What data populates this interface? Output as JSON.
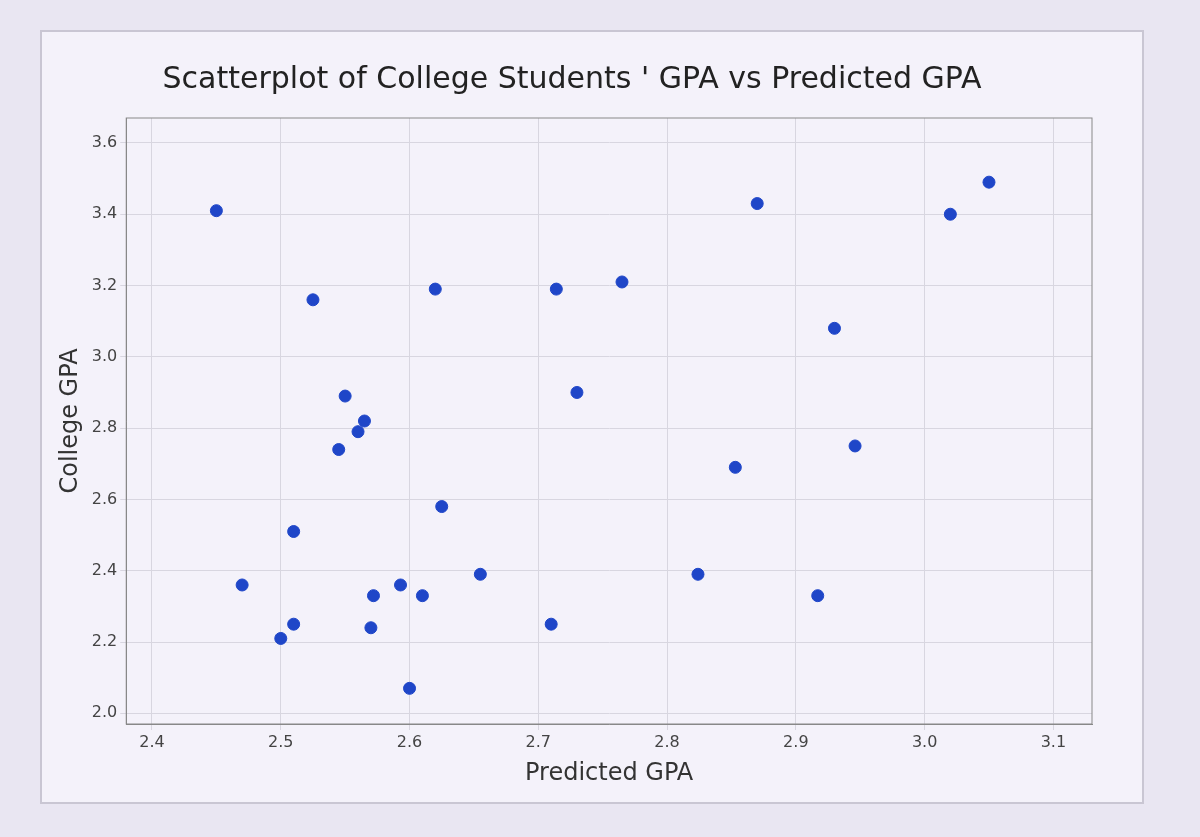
{
  "chart_data": {
    "type": "scatter",
    "title": "Scatterplot of College Students ' GPA vs Predicted GPA",
    "x_label": "Predicted GPA",
    "y_label": "College GPA",
    "x": [
      2.45,
      2.47,
      2.51,
      2.5,
      2.51,
      2.525,
      2.55,
      2.565,
      2.56,
      2.545,
      2.572,
      2.57,
      2.593,
      2.61,
      2.6,
      2.62,
      2.625,
      2.655,
      2.714,
      2.765,
      2.73,
      2.71,
      2.824,
      2.853,
      2.87,
      2.93,
      2.946,
      2.917,
      3.02,
      3.05
    ],
    "values": [
      3.41,
      2.36,
      2.51,
      2.21,
      2.25,
      3.16,
      2.89,
      2.82,
      2.79,
      2.74,
      2.33,
      2.24,
      2.36,
      2.33,
      2.07,
      3.19,
      2.58,
      2.39,
      3.19,
      3.21,
      2.9,
      2.25,
      2.39,
      2.69,
      3.43,
      3.08,
      2.75,
      2.33,
      3.4,
      3.49
    ],
    "color": "#1f46c8",
    "marker": "circle",
    "xlim": [
      2.38,
      3.13
    ],
    "xticks": [
      2.4,
      2.5,
      2.6,
      2.7,
      2.8,
      2.9,
      {
        "value": 3,
        "label": "3.0"
      },
      3.1
    ],
    "ylim": [
      1.97,
      3.67
    ],
    "yticks": [
      {
        "value": 2,
        "label": "2.0"
      },
      2.2,
      2.4,
      2.6,
      2.8,
      {
        "value": 3,
        "label": "3.0"
      },
      3.2,
      3.4,
      3.6
    ],
    "grid": true
  }
}
